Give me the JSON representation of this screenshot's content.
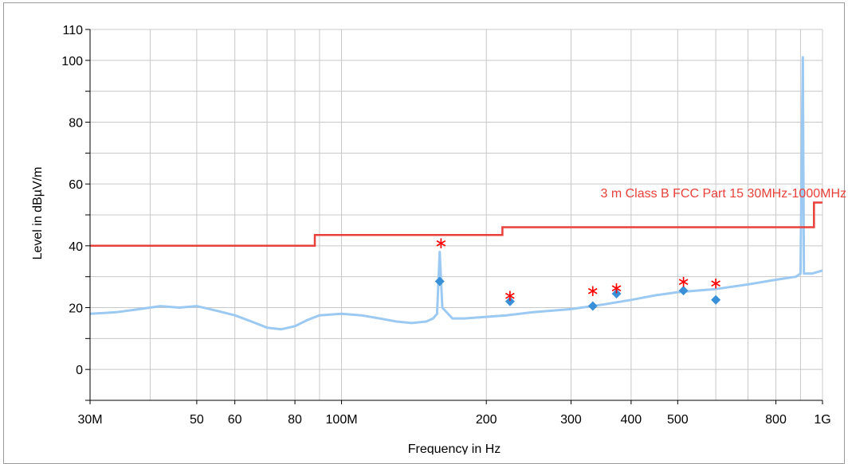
{
  "chart_data": {
    "type": "line",
    "title": "",
    "xlabel": "Frequency in Hz",
    "ylabel": "Level in dBµV/m",
    "x_scale": "log",
    "xlim": [
      30000000,
      1000000000
    ],
    "ylim": [
      -10,
      110
    ],
    "grid": true,
    "legend": "none",
    "x_ticks": [
      {
        "value": 30000000,
        "label": "30M"
      },
      {
        "value": 50000000,
        "label": "50"
      },
      {
        "value": 60000000,
        "label": "60"
      },
      {
        "value": 80000000,
        "label": "80"
      },
      {
        "value": 100000000,
        "label": "100M"
      },
      {
        "value": 200000000,
        "label": "200"
      },
      {
        "value": 300000000,
        "label": "300"
      },
      {
        "value": 400000000,
        "label": "400"
      },
      {
        "value": 500000000,
        "label": "500"
      },
      {
        "value": 800000000,
        "label": "800"
      },
      {
        "value": 1000000000,
        "label": "1G"
      }
    ],
    "x_minor_grid": [
      40000000,
      70000000,
      90000000,
      600000000,
      700000000,
      900000000
    ],
    "y_ticks": [
      {
        "value": 0,
        "label": "0"
      },
      {
        "value": 20,
        "label": "20"
      },
      {
        "value": 40,
        "label": "40"
      },
      {
        "value": 60,
        "label": "60"
      },
      {
        "value": 80,
        "label": "80"
      },
      {
        "value": 100,
        "label": "100"
      },
      {
        "value": 110,
        "label": "110"
      }
    ],
    "y_minor_ticks": [
      -10,
      10,
      30,
      50,
      70,
      90
    ],
    "colors": {
      "trace": "#9cc9f2",
      "limit": "#e8403a",
      "limit_label": "#e8403a",
      "peak_marker": "#ff0000",
      "qp_marker": "#3a8fd9",
      "grid": "#c8c8c8"
    },
    "limit_line": {
      "label": "3 m Class B FCC Part 15 30MHz-1000MHz",
      "points": [
        [
          30000000,
          40
        ],
        [
          88000000,
          40
        ],
        [
          88000000,
          43.5
        ],
        [
          216000000,
          43.5
        ],
        [
          216000000,
          46
        ],
        [
          960000000,
          46
        ],
        [
          960000000,
          54
        ],
        [
          1000000000,
          54
        ]
      ]
    },
    "trace": {
      "points": [
        [
          30000000,
          18
        ],
        [
          34000000,
          18.5
        ],
        [
          38000000,
          19.5
        ],
        [
          42000000,
          20.5
        ],
        [
          46000000,
          20
        ],
        [
          50000000,
          20.5
        ],
        [
          55000000,
          19
        ],
        [
          60000000,
          17.5
        ],
        [
          65000000,
          15.5
        ],
        [
          70000000,
          13.5
        ],
        [
          75000000,
          13
        ],
        [
          80000000,
          14
        ],
        [
          85000000,
          16
        ],
        [
          90000000,
          17.5
        ],
        [
          100000000,
          18
        ],
        [
          110000000,
          17.5
        ],
        [
          120000000,
          16.5
        ],
        [
          130000000,
          15.5
        ],
        [
          140000000,
          15
        ],
        [
          150000000,
          15.5
        ],
        [
          155000000,
          16.5
        ],
        [
          158000000,
          18
        ],
        [
          160000000,
          38
        ],
        [
          162000000,
          20
        ],
        [
          170000000,
          16.5
        ],
        [
          180000000,
          16.5
        ],
        [
          200000000,
          17
        ],
        [
          220000000,
          17.5
        ],
        [
          250000000,
          18.5
        ],
        [
          300000000,
          19.5
        ],
        [
          350000000,
          21
        ],
        [
          400000000,
          22.5
        ],
        [
          450000000,
          24
        ],
        [
          500000000,
          25
        ],
        [
          600000000,
          26
        ],
        [
          700000000,
          27.5
        ],
        [
          800000000,
          29
        ],
        [
          880000000,
          30
        ],
        [
          900000000,
          31
        ],
        [
          910000000,
          101
        ],
        [
          915000000,
          31
        ],
        [
          950000000,
          31
        ],
        [
          1000000000,
          32
        ]
      ]
    },
    "peak_markers": [
      {
        "x": 161000000,
        "y": 41
      },
      {
        "x": 224000000,
        "y": 24
      },
      {
        "x": 333000000,
        "y": 25.5
      },
      {
        "x": 373000000,
        "y": 26.5
      },
      {
        "x": 514000000,
        "y": 28.5
      },
      {
        "x": 600000000,
        "y": 28
      }
    ],
    "qp_markers": [
      {
        "x": 160000000,
        "y": 28.5
      },
      {
        "x": 224000000,
        "y": 22
      },
      {
        "x": 333000000,
        "y": 20.5
      },
      {
        "x": 373000000,
        "y": 24.5
      },
      {
        "x": 514000000,
        "y": 25.5
      },
      {
        "x": 600000000,
        "y": 22.5
      }
    ]
  }
}
